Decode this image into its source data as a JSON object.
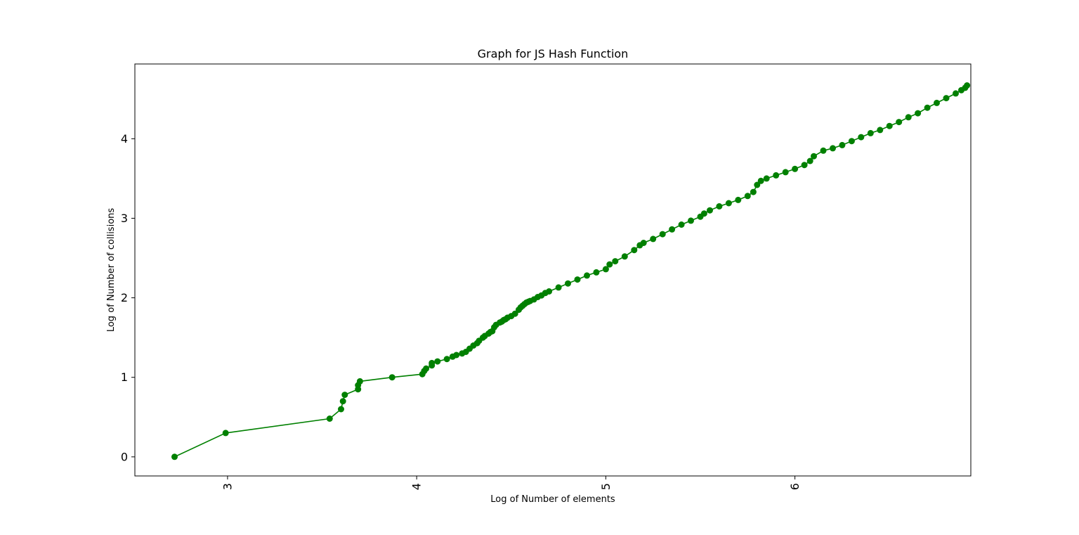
{
  "chart_data": {
    "type": "line",
    "title": "Graph for JS Hash Function",
    "xlabel": "Log of Number of elements",
    "ylabel": "Log of Number of collisions",
    "xlim": [
      2.51,
      6.93
    ],
    "ylim": [
      -0.24,
      4.94
    ],
    "x_ticks": [
      3,
      4,
      5,
      6
    ],
    "y_ticks": [
      0,
      1,
      2,
      3,
      4
    ],
    "x_tick_rotation": 90,
    "grid": false,
    "legend": "none",
    "series": [
      {
        "color": "#008000",
        "marker": "circle",
        "x": [
          2.72,
          2.99,
          3.54,
          3.6,
          3.61,
          3.62,
          3.69,
          3.69,
          3.7,
          3.87,
          4.03,
          4.04,
          4.05,
          4.08,
          4.08,
          4.11,
          4.16,
          4.19,
          4.21,
          4.24,
          4.26,
          4.28,
          4.3,
          4.32,
          4.33,
          4.35,
          4.36,
          4.38,
          4.39,
          4.4,
          4.41,
          4.42,
          4.44,
          4.45,
          4.46,
          4.47,
          4.48,
          4.5,
          4.52,
          4.54,
          4.55,
          4.56,
          4.57,
          4.58,
          4.59,
          4.6,
          4.62,
          4.64,
          4.66,
          4.68,
          4.7,
          4.75,
          4.8,
          4.85,
          4.9,
          4.95,
          5.0,
          5.02,
          5.05,
          5.1,
          5.15,
          5.18,
          5.2,
          5.25,
          5.3,
          5.35,
          5.4,
          5.45,
          5.5,
          5.52,
          5.55,
          5.6,
          5.65,
          5.7,
          5.75,
          5.78,
          5.8,
          5.82,
          5.85,
          5.9,
          5.95,
          6.0,
          6.05,
          6.08,
          6.1,
          6.15,
          6.2,
          6.25,
          6.3,
          6.35,
          6.4,
          6.45,
          6.5,
          6.55,
          6.6,
          6.65,
          6.7,
          6.75,
          6.8,
          6.85,
          6.88,
          6.9,
          6.91
        ],
        "y": [
          0.0,
          0.3,
          0.48,
          0.6,
          0.7,
          0.78,
          0.85,
          0.9,
          0.95,
          1.0,
          1.04,
          1.08,
          1.11,
          1.15,
          1.18,
          1.2,
          1.23,
          1.26,
          1.28,
          1.3,
          1.32,
          1.36,
          1.4,
          1.43,
          1.46,
          1.5,
          1.52,
          1.55,
          1.57,
          1.58,
          1.63,
          1.66,
          1.69,
          1.7,
          1.72,
          1.73,
          1.75,
          1.77,
          1.8,
          1.85,
          1.88,
          1.9,
          1.92,
          1.94,
          1.95,
          1.96,
          1.98,
          2.01,
          2.03,
          2.06,
          2.08,
          2.13,
          2.18,
          2.23,
          2.28,
          2.32,
          2.36,
          2.42,
          2.46,
          2.52,
          2.6,
          2.66,
          2.69,
          2.74,
          2.8,
          2.86,
          2.92,
          2.97,
          3.02,
          3.06,
          3.1,
          3.15,
          3.19,
          3.23,
          3.28,
          3.33,
          3.42,
          3.47,
          3.5,
          3.54,
          3.58,
          3.62,
          3.67,
          3.72,
          3.78,
          3.85,
          3.88,
          3.92,
          3.97,
          4.02,
          4.07,
          4.11,
          4.16,
          4.21,
          4.27,
          4.32,
          4.39,
          4.45,
          4.51,
          4.57,
          4.61,
          4.64,
          4.67
        ]
      }
    ]
  }
}
